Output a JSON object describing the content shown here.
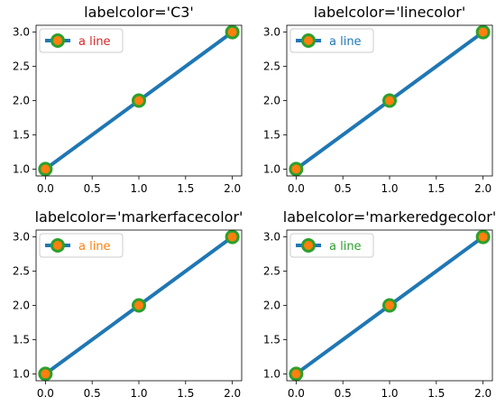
{
  "chart_data": [
    {
      "type": "line",
      "title": "labelcolor='C3'",
      "x": [
        0,
        1,
        2
      ],
      "series": [
        {
          "name": "a line",
          "values": [
            1,
            2,
            3
          ]
        }
      ],
      "xlim": [
        -0.1,
        2.1
      ],
      "ylim": [
        0.9,
        3.1
      ],
      "xticks": [
        "0.0",
        "0.5",
        "1.0",
        "1.5",
        "2.0"
      ],
      "yticks": [
        "1.0",
        "1.5",
        "2.0",
        "2.5",
        "3.0"
      ],
      "legend": {
        "placement": "upper-left",
        "label_color": "#d62728"
      },
      "grid": false
    },
    {
      "type": "line",
      "title": "labelcolor='linecolor'",
      "x": [
        0,
        1,
        2
      ],
      "series": [
        {
          "name": "a line",
          "values": [
            1,
            2,
            3
          ]
        }
      ],
      "xlim": [
        -0.1,
        2.1
      ],
      "ylim": [
        0.9,
        3.1
      ],
      "xticks": [
        "0.0",
        "0.5",
        "1.0",
        "1.5",
        "2.0"
      ],
      "yticks": [
        "1.0",
        "1.5",
        "2.0",
        "2.5",
        "3.0"
      ],
      "legend": {
        "placement": "upper-left",
        "label_color": "#1f77b4"
      },
      "grid": false
    },
    {
      "type": "line",
      "title": "labelcolor='markerfacecolor'",
      "x": [
        0,
        1,
        2
      ],
      "series": [
        {
          "name": "a line",
          "values": [
            1,
            2,
            3
          ]
        }
      ],
      "xlim": [
        -0.1,
        2.1
      ],
      "ylim": [
        0.9,
        3.1
      ],
      "xticks": [
        "0.0",
        "0.5",
        "1.0",
        "1.5",
        "2.0"
      ],
      "yticks": [
        "1.0",
        "1.5",
        "2.0",
        "2.5",
        "3.0"
      ],
      "legend": {
        "placement": "upper-left",
        "label_color": "#ff7f0e"
      },
      "grid": false
    },
    {
      "type": "line",
      "title": "labelcolor='markeredgecolor'",
      "x": [
        0,
        1,
        2
      ],
      "series": [
        {
          "name": "a line",
          "values": [
            1,
            2,
            3
          ]
        }
      ],
      "xlim": [
        -0.1,
        2.1
      ],
      "ylim": [
        0.9,
        3.1
      ],
      "xticks": [
        "0.0",
        "0.5",
        "1.0",
        "1.5",
        "2.0"
      ],
      "yticks": [
        "1.0",
        "1.5",
        "2.0",
        "2.5",
        "3.0"
      ],
      "legend": {
        "placement": "upper-left",
        "label_color": "#2ca02c"
      },
      "grid": false
    }
  ],
  "style": {
    "line_color": "#1f77b4",
    "marker_face_color": "#ff7f0e",
    "marker_edge_color": "#2ca02c"
  }
}
